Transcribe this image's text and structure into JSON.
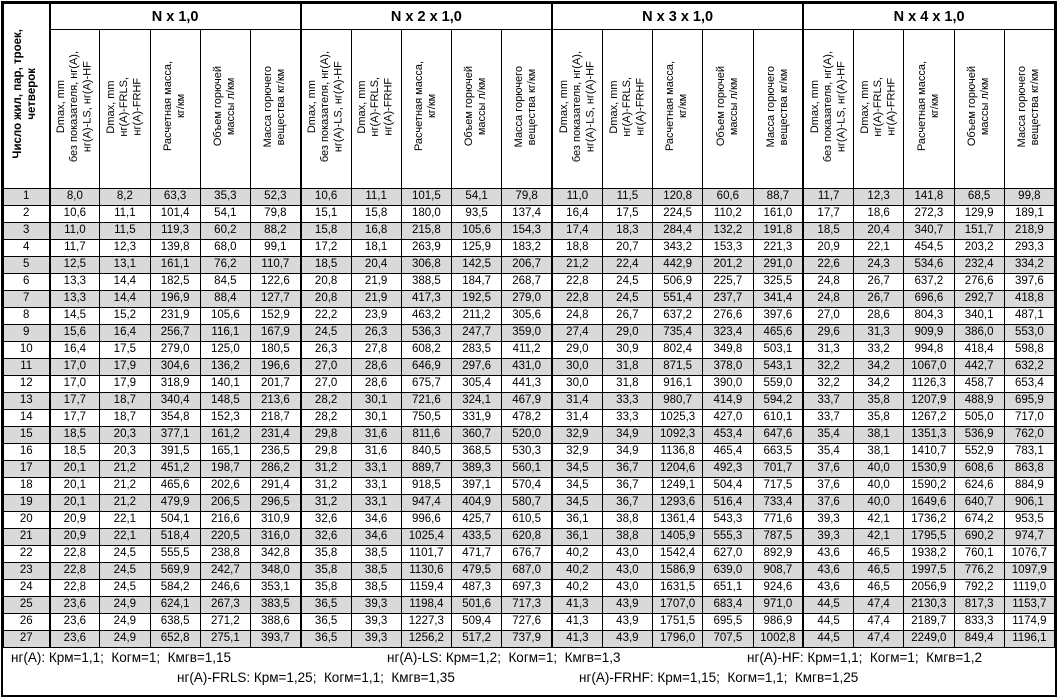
{
  "colors": {
    "row_stripe": "#d9d9d9",
    "border": "#000000",
    "background": "#ffffff"
  },
  "table": {
    "corner_header": "Число жил, пар, троек,\nчетверок",
    "groups": [
      {
        "title": "N x 1,0"
      },
      {
        "title": "N x 2 x 1,0"
      },
      {
        "title": "N x 3 x 1,0"
      },
      {
        "title": "N x 4 x 1,0"
      }
    ],
    "sub_headers": [
      "Dmax, mm\nбез показателя, нг(А),\nнг(А)-LS, нг(А)-HF",
      "Dmax, mm\nнг(А)-FRLS,\nнг(А)-FRHF",
      "Расчетная масса,\nкг/км",
      "Объем горючей\nмассы л/км",
      "Масса горючего\nвещества кг/км"
    ],
    "rows": [
      [
        "1",
        "8,0",
        "8,2",
        "63,3",
        "35,3",
        "52,3",
        "10,6",
        "11,1",
        "101,5",
        "54,1",
        "79,8",
        "11,0",
        "11,5",
        "120,8",
        "60,6",
        "88,7",
        "11,7",
        "12,3",
        "141,8",
        "68,5",
        "99,8"
      ],
      [
        "2",
        "10,6",
        "11,1",
        "101,4",
        "54,1",
        "79,8",
        "15,1",
        "15,8",
        "180,0",
        "93,5",
        "137,4",
        "16,4",
        "17,5",
        "224,5",
        "110,2",
        "161,0",
        "17,7",
        "18,6",
        "272,3",
        "129,9",
        "189,1"
      ],
      [
        "3",
        "11,0",
        "11,5",
        "119,3",
        "60,2",
        "88,2",
        "15,8",
        "16,8",
        "215,8",
        "105,6",
        "154,3",
        "17,4",
        "18,3",
        "284,4",
        "132,2",
        "191,8",
        "18,5",
        "20,4",
        "340,7",
        "151,7",
        "218,9"
      ],
      [
        "4",
        "11,7",
        "12,3",
        "139,8",
        "68,0",
        "99,1",
        "17,2",
        "18,1",
        "263,9",
        "125,9",
        "183,2",
        "18,8",
        "20,7",
        "343,2",
        "153,3",
        "221,3",
        "20,9",
        "22,1",
        "454,5",
        "203,2",
        "293,3"
      ],
      [
        "5",
        "12,5",
        "13,1",
        "161,1",
        "76,2",
        "110,7",
        "18,5",
        "20,4",
        "306,8",
        "142,5",
        "206,7",
        "21,2",
        "22,4",
        "442,9",
        "201,2",
        "291,0",
        "22,6",
        "24,3",
        "534,6",
        "232,4",
        "334,2"
      ],
      [
        "6",
        "13,3",
        "14,4",
        "182,5",
        "84,5",
        "122,6",
        "20,8",
        "21,9",
        "388,5",
        "184,7",
        "268,7",
        "22,8",
        "24,5",
        "506,9",
        "225,7",
        "325,5",
        "24,8",
        "26,7",
        "637,2",
        "276,6",
        "397,6"
      ],
      [
        "7",
        "13,3",
        "14,4",
        "196,9",
        "88,4",
        "127,7",
        "20,8",
        "21,9",
        "417,3",
        "192,5",
        "279,0",
        "22,8",
        "24,5",
        "551,4",
        "237,7",
        "341,4",
        "24,8",
        "26,7",
        "696,6",
        "292,7",
        "418,8"
      ],
      [
        "8",
        "14,5",
        "15,2",
        "231,9",
        "105,6",
        "152,9",
        "22,2",
        "23,9",
        "463,2",
        "211,2",
        "305,6",
        "24,8",
        "26,7",
        "637,2",
        "276,6",
        "397,6",
        "27,0",
        "28,6",
        "804,3",
        "340,1",
        "487,1"
      ],
      [
        "9",
        "15,6",
        "16,4",
        "256,7",
        "116,1",
        "167,9",
        "24,5",
        "26,3",
        "536,3",
        "247,7",
        "359,0",
        "27,4",
        "29,0",
        "735,4",
        "323,4",
        "465,6",
        "29,6",
        "31,3",
        "909,9",
        "386,0",
        "553,0"
      ],
      [
        "10",
        "16,4",
        "17,5",
        "279,0",
        "125,0",
        "180,5",
        "26,3",
        "27,8",
        "608,2",
        "283,5",
        "411,2",
        "29,0",
        "30,9",
        "802,4",
        "349,8",
        "503,1",
        "31,3",
        "33,2",
        "994,8",
        "418,4",
        "598,8"
      ],
      [
        "11",
        "17,0",
        "17,9",
        "304,6",
        "136,2",
        "196,6",
        "27,0",
        "28,6",
        "646,9",
        "297,6",
        "431,0",
        "30,0",
        "31,8",
        "871,5",
        "378,0",
        "543,1",
        "32,2",
        "34,2",
        "1067,0",
        "442,7",
        "632,2"
      ],
      [
        "12",
        "17,0",
        "17,9",
        "318,9",
        "140,1",
        "201,7",
        "27,0",
        "28,6",
        "675,7",
        "305,4",
        "441,3",
        "30,0",
        "31,8",
        "916,1",
        "390,0",
        "559,0",
        "32,2",
        "34,2",
        "1126,3",
        "458,7",
        "653,4"
      ],
      [
        "13",
        "17,7",
        "18,7",
        "340,4",
        "148,5",
        "213,6",
        "28,2",
        "30,1",
        "721,6",
        "324,1",
        "467,9",
        "31,4",
        "33,3",
        "980,7",
        "414,9",
        "594,2",
        "33,7",
        "35,8",
        "1207,9",
        "488,9",
        "695,9"
      ],
      [
        "14",
        "17,7",
        "18,7",
        "354,8",
        "152,3",
        "218,7",
        "28,2",
        "30,1",
        "750,5",
        "331,9",
        "478,2",
        "31,4",
        "33,3",
        "1025,3",
        "427,0",
        "610,1",
        "33,7",
        "35,8",
        "1267,2",
        "505,0",
        "717,0"
      ],
      [
        "15",
        "18,5",
        "20,3",
        "377,1",
        "161,2",
        "231,4",
        "29,8",
        "31,6",
        "811,6",
        "360,7",
        "520,0",
        "32,9",
        "34,9",
        "1092,3",
        "453,4",
        "647,6",
        "35,4",
        "38,1",
        "1351,3",
        "536,9",
        "762,0"
      ],
      [
        "16",
        "18,5",
        "20,3",
        "391,5",
        "165,1",
        "236,5",
        "29,8",
        "31,6",
        "840,5",
        "368,5",
        "530,3",
        "32,9",
        "34,9",
        "1136,8",
        "465,4",
        "663,5",
        "35,4",
        "38,1",
        "1410,7",
        "552,9",
        "783,1"
      ],
      [
        "17",
        "20,1",
        "21,2",
        "451,2",
        "198,7",
        "286,2",
        "31,2",
        "33,1",
        "889,7",
        "389,3",
        "560,1",
        "34,5",
        "36,7",
        "1204,6",
        "492,3",
        "701,7",
        "37,6",
        "40,0",
        "1530,9",
        "608,6",
        "863,8"
      ],
      [
        "18",
        "20,1",
        "21,2",
        "465,6",
        "202,6",
        "291,4",
        "31,2",
        "33,1",
        "918,5",
        "397,1",
        "570,4",
        "34,5",
        "36,7",
        "1249,1",
        "504,4",
        "717,5",
        "37,6",
        "40,0",
        "1590,2",
        "624,6",
        "884,9"
      ],
      [
        "19",
        "20,1",
        "21,2",
        "479,9",
        "206,5",
        "296,5",
        "31,2",
        "33,1",
        "947,4",
        "404,9",
        "580,7",
        "34,5",
        "36,7",
        "1293,6",
        "516,4",
        "733,4",
        "37,6",
        "40,0",
        "1649,6",
        "640,7",
        "906,1"
      ],
      [
        "20",
        "20,9",
        "22,1",
        "504,1",
        "216,6",
        "310,9",
        "32,6",
        "34,6",
        "996,6",
        "425,7",
        "610,5",
        "36,1",
        "38,8",
        "1361,4",
        "543,3",
        "771,6",
        "39,3",
        "42,1",
        "1736,2",
        "674,2",
        "953,5"
      ],
      [
        "21",
        "20,9",
        "22,1",
        "518,4",
        "220,5",
        "316,0",
        "32,6",
        "34,6",
        "1025,4",
        "433,5",
        "620,8",
        "36,1",
        "38,8",
        "1405,9",
        "555,3",
        "787,5",
        "39,3",
        "42,1",
        "1795,5",
        "690,2",
        "974,7"
      ],
      [
        "22",
        "22,8",
        "24,5",
        "555,5",
        "238,8",
        "342,8",
        "35,8",
        "38,5",
        "1101,7",
        "471,7",
        "676,7",
        "40,2",
        "43,0",
        "1542,4",
        "627,0",
        "892,9",
        "43,6",
        "46,5",
        "1938,2",
        "760,1",
        "1076,7"
      ],
      [
        "23",
        "22,8",
        "24,5",
        "569,9",
        "242,7",
        "348,0",
        "35,8",
        "38,5",
        "1130,6",
        "479,5",
        "687,0",
        "40,2",
        "43,0",
        "1586,9",
        "639,0",
        "908,7",
        "43,6",
        "46,5",
        "1997,5",
        "776,2",
        "1097,9"
      ],
      [
        "24",
        "22,8",
        "24,5",
        "584,2",
        "246,6",
        "353,1",
        "35,8",
        "38,5",
        "1159,4",
        "487,3",
        "697,3",
        "40,2",
        "43,0",
        "1631,5",
        "651,1",
        "924,6",
        "43,6",
        "46,5",
        "2056,9",
        "792,2",
        "1119,0"
      ],
      [
        "25",
        "23,6",
        "24,9",
        "624,1",
        "267,3",
        "383,5",
        "36,5",
        "39,3",
        "1198,4",
        "501,6",
        "717,3",
        "41,3",
        "43,9",
        "1707,0",
        "683,4",
        "971,0",
        "44,5",
        "47,4",
        "2130,3",
        "817,3",
        "1153,7"
      ],
      [
        "26",
        "23,6",
        "24,9",
        "638,5",
        "271,2",
        "388,6",
        "36,5",
        "39,3",
        "1227,3",
        "509,4",
        "727,6",
        "41,3",
        "43,9",
        "1751,5",
        "695,5",
        "986,9",
        "44,5",
        "47,4",
        "2189,7",
        "833,3",
        "1174,9"
      ],
      [
        "27",
        "23,6",
        "24,9",
        "652,8",
        "275,1",
        "393,7",
        "36,5",
        "39,3",
        "1256,2",
        "517,2",
        "737,9",
        "41,3",
        "43,9",
        "1796,0",
        "707,5",
        "1002,8",
        "44,5",
        "47,4",
        "2249,0",
        "849,4",
        "1196,1"
      ]
    ]
  },
  "footer": {
    "line1": [
      "нг(А): Крм=1,1;  Когм=1;  Кмгв=1,15",
      "нг(А)-LS: Крм=1,2;  Когм=1;  Кмгв=1,3",
      "нг(А)-HF: Крм=1,1;  Когм=1;  Кмгв=1,2"
    ],
    "line2": [
      "нг(А)-FRLS: Крм=1,25;  Когм=1,1;  Кмгв=1,35",
      "нг(А)-FRHF: Крм=1,15;  Когм=1,1;  Кмгв=1,25"
    ]
  }
}
